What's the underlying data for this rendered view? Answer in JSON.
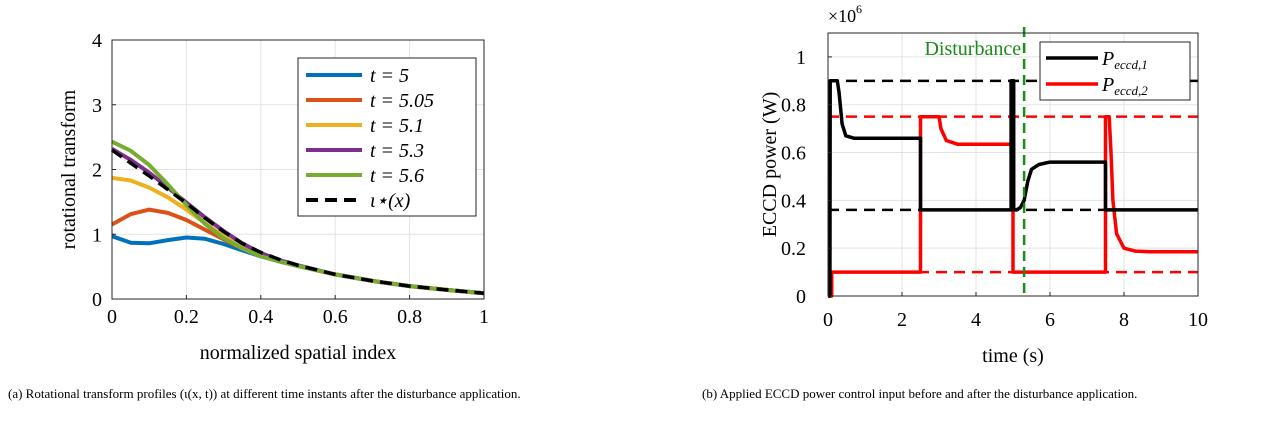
{
  "captions": {
    "a": "(a) Rotational transform profiles (ι(x, t)) at different time instants after the disturbance application.",
    "b": "(b) Applied ECCD power control input before and after the disturbance application."
  },
  "colors": {
    "blue": "#0072BD",
    "orange": "#D95319",
    "yellow": "#EDB120",
    "purple": "#7E2F8E",
    "green": "#77AC30",
    "black": "#000000",
    "red": "#FF0000",
    "disturbance": "#1a8a1a"
  },
  "chart_data": [
    {
      "type": "line",
      "xlabel": "normalized spatial index",
      "ylabel": "rotational transform",
      "xlim": [
        0,
        1
      ],
      "ylim": [
        0,
        4
      ],
      "xticks": [
        "0",
        "0.2",
        "0.4",
        "0.6",
        "0.8",
        "1"
      ],
      "yticks": [
        "0",
        "1",
        "2",
        "3",
        "4"
      ],
      "legend_position": "top-right",
      "x": [
        0,
        0.05,
        0.1,
        0.15,
        0.2,
        0.25,
        0.3,
        0.35,
        0.4,
        0.45,
        0.5,
        0.6,
        0.7,
        0.8,
        0.9,
        1.0
      ],
      "series": [
        {
          "name": "t = 5",
          "color": "blue",
          "values": [
            0.97,
            0.87,
            0.86,
            0.91,
            0.95,
            0.93,
            0.85,
            0.75,
            0.66,
            0.58,
            0.51,
            0.38,
            0.28,
            0.2,
            0.14,
            0.09
          ]
        },
        {
          "name": "t = 5.05",
          "color": "orange",
          "values": [
            1.15,
            1.31,
            1.38,
            1.33,
            1.22,
            1.07,
            0.92,
            0.78,
            0.67,
            0.58,
            0.51,
            0.38,
            0.28,
            0.2,
            0.14,
            0.09
          ]
        },
        {
          "name": "t = 5.1",
          "color": "yellow",
          "values": [
            1.87,
            1.83,
            1.72,
            1.57,
            1.38,
            1.17,
            0.97,
            0.8,
            0.68,
            0.59,
            0.51,
            0.38,
            0.28,
            0.2,
            0.14,
            0.09
          ]
        },
        {
          "name": "t = 5.3",
          "color": "purple",
          "values": [
            2.32,
            2.15,
            1.95,
            1.72,
            1.49,
            1.26,
            1.05,
            0.86,
            0.71,
            0.6,
            0.52,
            0.38,
            0.28,
            0.2,
            0.14,
            0.09
          ]
        },
        {
          "name": "t = 5.6",
          "color": "green",
          "values": [
            2.43,
            2.29,
            2.07,
            1.77,
            1.45,
            1.16,
            0.94,
            0.78,
            0.66,
            0.58,
            0.51,
            0.38,
            0.28,
            0.2,
            0.14,
            0.09
          ]
        },
        {
          "name": "ι⋆(x)",
          "color": "black",
          "dashed": true,
          "values": [
            2.3,
            2.1,
            1.9,
            1.69,
            1.48,
            1.25,
            1.04,
            0.86,
            0.72,
            0.61,
            0.52,
            0.38,
            0.28,
            0.2,
            0.14,
            0.09
          ]
        }
      ]
    },
    {
      "type": "line",
      "xlabel": "time (s)",
      "ylabel": "ECCD power (W)",
      "exponent_label": "×10",
      "exponent_power": "6",
      "xlim": [
        0,
        10
      ],
      "ylim": [
        0,
        1.1
      ],
      "xticks": [
        "0",
        "2",
        "4",
        "6",
        "8",
        "10"
      ],
      "yticks": [
        "0",
        "0.2",
        "0.4",
        "0.6",
        "0.8",
        "1"
      ],
      "legend_position": "top-right",
      "annotation": "Disturbance",
      "disturbance_time": 5.3,
      "reference_lines": [
        {
          "value": 0.9,
          "color": "black"
        },
        {
          "value": 0.36,
          "color": "black"
        },
        {
          "value": 0.75,
          "color": "red"
        },
        {
          "value": 0.1,
          "color": "red"
        }
      ],
      "series": [
        {
          "name": "P_eccd,1",
          "label_main": "P",
          "label_sub": "eccd,1",
          "color": "black",
          "x": [
            0,
            0.05,
            0.06,
            0.25,
            0.3,
            0.38,
            0.48,
            0.7,
            1.2,
            2.5,
            2.5,
            4.95,
            4.95,
            5.02,
            5.02,
            5.1,
            5.2,
            5.3,
            5.4,
            5.5,
            5.7,
            6.0,
            6.5,
            7.5,
            7.5,
            10
          ],
          "values": [
            0,
            0,
            0.9,
            0.9,
            0.85,
            0.72,
            0.67,
            0.66,
            0.66,
            0.66,
            0.36,
            0.36,
            0.9,
            0.9,
            0.36,
            0.36,
            0.37,
            0.4,
            0.48,
            0.53,
            0.55,
            0.56,
            0.56,
            0.56,
            0.36,
            0.36
          ]
        },
        {
          "name": "P_eccd,2",
          "label_main": "P",
          "label_sub": "eccd,2",
          "color": "red",
          "x": [
            0,
            0.1,
            0.1,
            2.5,
            2.5,
            3.0,
            3.05,
            3.2,
            3.5,
            5.0,
            5.0,
            7.5,
            7.5,
            7.6,
            7.65,
            7.7,
            7.8,
            8.0,
            8.3,
            8.7,
            10
          ],
          "values": [
            0,
            0,
            0.1,
            0.1,
            0.75,
            0.75,
            0.7,
            0.65,
            0.635,
            0.635,
            0.1,
            0.1,
            0.75,
            0.75,
            0.6,
            0.4,
            0.26,
            0.2,
            0.188,
            0.185,
            0.185
          ]
        }
      ]
    }
  ]
}
